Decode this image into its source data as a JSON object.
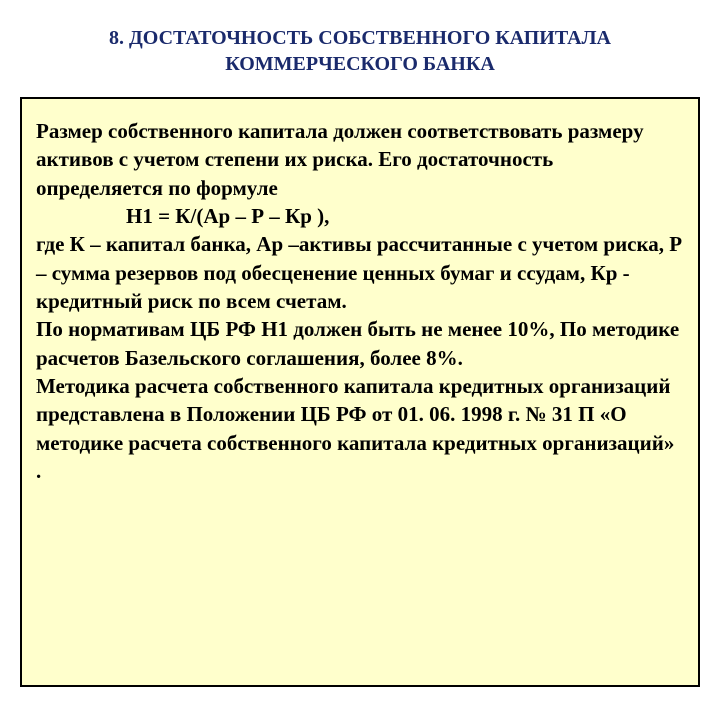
{
  "title": {
    "line1": "8. ДОСТАТОЧНОСТЬ СОБСТВЕННОГО КАПИТАЛА",
    "line2": "КОММЕРЧЕСКОГО БАНКА"
  },
  "content": {
    "para1": "Размер собственного капитала должен соответствовать размеру активов с учетом степени их риска. Его достаточность определяется по формуле",
    "formula": "Н1 = К/(Ар – Р – Кр ),",
    "para2": "где К – капитал банка, Ар –активы рассчитанные с учетом риска, Р – сумма резервов под обесценение ценных бумаг и ссудам, Кр - кредитный риск по всем счетам.",
    "para3": "По нормативам ЦБ РФ Н1 должен быть не менее 10%, По методике расчетов Базельского соглашения, более 8%.",
    "para4": "Методика расчета собственного капитала кредитных организаций представлена в Положении ЦБ РФ от 01. 06. 1998 г. № 31 П «О методике расчета собственного капитала кредитных организаций» ."
  },
  "styling": {
    "title_color": "#1a2a6c",
    "title_fontsize": 20,
    "body_fontsize": 21,
    "body_color": "#000000",
    "box_background": "#ffffcc",
    "box_border_color": "#000000",
    "page_background": "#ffffff",
    "font_family": "Times New Roman"
  }
}
